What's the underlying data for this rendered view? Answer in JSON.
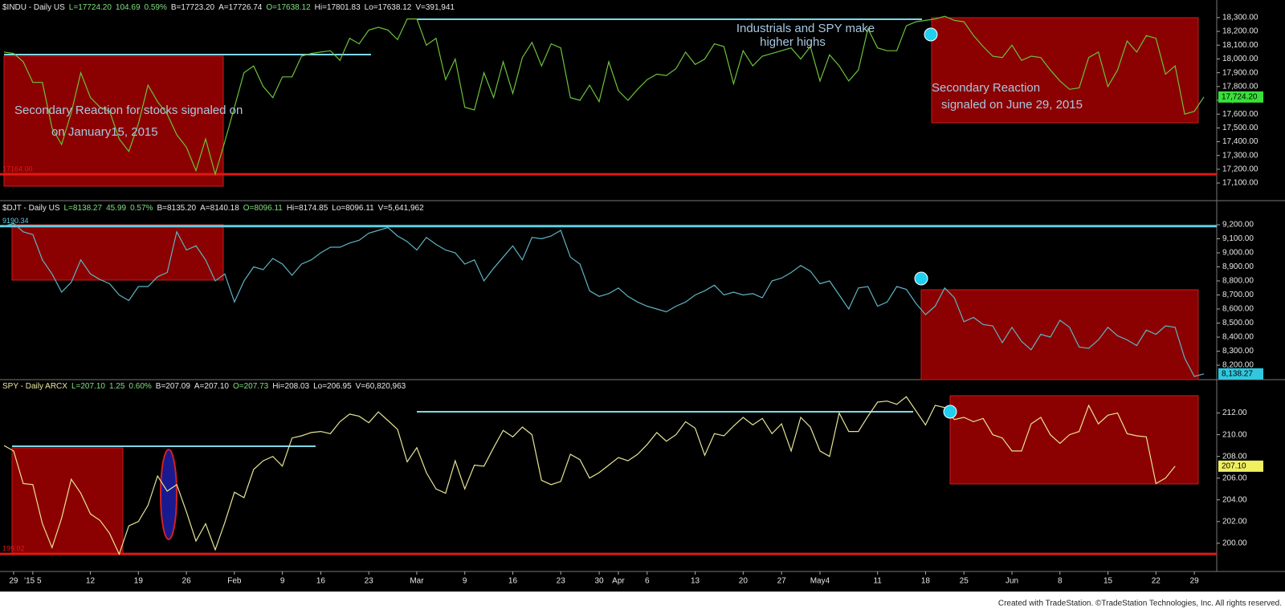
{
  "chart_data": [
    {
      "type": "line",
      "header": [
        {
          "text": "$INDU - Daily  US",
          "color": "#e8e8e8"
        },
        {
          "text": "L=17724.20",
          "color": "#7fe07f"
        },
        {
          "text": "104.69",
          "color": "#7fe07f"
        },
        {
          "text": "0.59%",
          "color": "#7fe07f"
        },
        {
          "text": "B=17723.20",
          "color": "#e8e8e8"
        },
        {
          "text": "A=17726.74",
          "color": "#e8e8e8"
        },
        {
          "text": "O=17638.12",
          "color": "#7fe07f"
        },
        {
          "text": "Hi=17801.83",
          "color": "#e8e8e8"
        },
        {
          "text": "Lo=17638.12",
          "color": "#e8e8e8"
        },
        {
          "text": "V=391,941",
          "color": "#e8e8e8"
        }
      ],
      "color": "#6cc23a",
      "xlim": [
        0,
        126
      ],
      "ylim": [
        16984,
        18416
      ],
      "x": [
        0,
        1,
        2,
        3,
        4,
        5,
        6,
        7,
        8,
        9,
        10,
        11,
        12,
        13,
        14,
        15,
        16,
        17,
        18,
        19,
        20,
        21,
        22,
        23,
        24,
        25,
        26,
        27,
        28,
        29,
        30,
        31,
        32,
        33,
        34,
        35,
        36,
        37,
        38,
        39,
        40,
        41,
        42,
        43,
        44,
        45,
        46,
        47,
        48,
        49,
        50,
        51,
        52,
        53,
        54,
        55,
        56,
        57,
        58,
        59,
        60,
        61,
        62,
        63,
        64,
        65,
        66,
        67,
        68,
        69,
        70,
        71,
        72,
        73,
        74,
        75,
        76,
        77,
        78,
        79,
        80,
        81,
        82,
        83,
        84,
        85,
        86,
        87,
        88,
        89,
        90,
        91,
        92,
        93,
        94,
        95,
        96,
        97,
        98,
        99,
        100,
        101,
        102,
        103,
        104,
        105,
        106,
        107,
        108,
        109,
        110,
        111,
        112,
        113,
        114,
        115,
        116,
        117,
        118,
        119,
        120,
        121,
        122,
        123,
        124,
        125
      ],
      "values": [
        18050,
        18040,
        17980,
        17830,
        17830,
        17500,
        17380,
        17610,
        17900,
        17720,
        17650,
        17620,
        17420,
        17330,
        17530,
        17810,
        17690,
        17600,
        17450,
        17360,
        17190,
        17420,
        17164,
        17400,
        17650,
        17900,
        17950,
        17800,
        17720,
        17870,
        17870,
        18020,
        18040,
        18050,
        18060,
        17990,
        18150,
        18110,
        18210,
        18230,
        18210,
        18140,
        18290,
        18290,
        18100,
        18150,
        17850,
        18000,
        17650,
        17630,
        17900,
        17720,
        17980,
        17750,
        18010,
        18120,
        17950,
        18110,
        18080,
        17720,
        17700,
        17810,
        17690,
        17980,
        17770,
        17700,
        17780,
        17850,
        17890,
        17880,
        17930,
        18050,
        17960,
        18000,
        18110,
        18090,
        17820,
        18060,
        17950,
        18020,
        18040,
        18060,
        18080,
        18000,
        18090,
        17840,
        18030,
        17950,
        17840,
        17920,
        18220,
        18080,
        18060,
        18060,
        18240,
        18270,
        18280,
        18290,
        18310,
        18280,
        18270,
        18170,
        18090,
        18020,
        18010,
        18100,
        17990,
        18020,
        18010,
        17920,
        17840,
        17780,
        17790,
        18010,
        18050,
        17800,
        17920,
        18130,
        18050,
        18170,
        18150,
        17890,
        17950,
        17600,
        17620,
        17724.2
      ],
      "yticks": [
        {
          "value": 17100,
          "label": "17,100.00"
        },
        {
          "value": 17200,
          "label": "17,200.00"
        },
        {
          "value": 17300,
          "label": "17,300.00"
        },
        {
          "value": 17400,
          "label": "17,400.00"
        },
        {
          "value": 17500,
          "label": "17,500.00"
        },
        {
          "value": 17600,
          "label": "17,600.00"
        },
        {
          "value": 17700,
          "label": "17,700.00"
        },
        {
          "value": 17800,
          "label": "17,800.00"
        },
        {
          "value": 17900,
          "label": "17,900.00"
        },
        {
          "value": 18000,
          "label": "18,000.00"
        },
        {
          "value": 18100,
          "label": "18,100.00"
        },
        {
          "value": 18200,
          "label": "18,200.00"
        },
        {
          "value": 18300,
          "label": "18,300.00"
        }
      ],
      "levels": [
        {
          "value": 17164,
          "label": "17164.00",
          "color": "#e01818"
        }
      ],
      "last_label": {
        "value": 17724.2,
        "label": "17,724.20",
        "color": "#39e039"
      },
      "annotations": [
        "Industrials and SPY  make",
        "higher highs",
        "Secondary  Reaction for stocks signaled on",
        "on January15, 2015",
        "Secondary Reaction",
        "signaled on June 29, 2015"
      ]
    },
    {
      "type": "line",
      "header": [
        {
          "text": "$DJT - Daily  US",
          "color": "#e8e8e8"
        },
        {
          "text": "L=8138.27",
          "color": "#7fe07f"
        },
        {
          "text": "45.99",
          "color": "#7fe07f"
        },
        {
          "text": "0.57%",
          "color": "#7fe07f"
        },
        {
          "text": "B=8135.20",
          "color": "#e8e8e8"
        },
        {
          "text": "A=8140.18",
          "color": "#e8e8e8"
        },
        {
          "text": "O=8096.11",
          "color": "#7fe07f"
        },
        {
          "text": "Hi=8174.85",
          "color": "#e8e8e8"
        },
        {
          "text": "Lo=8096.11",
          "color": "#e8e8e8"
        },
        {
          "text": "V=5,641,962",
          "color": "#e8e8e8"
        }
      ],
      "color": "#5db4c4",
      "xlim": [
        0,
        126
      ],
      "ylim": [
        8103,
        9360
      ],
      "x": [
        0,
        1,
        2,
        3,
        4,
        5,
        6,
        7,
        8,
        9,
        10,
        11,
        12,
        13,
        14,
        15,
        16,
        17,
        18,
        19,
        20,
        21,
        22,
        23,
        24,
        25,
        26,
        27,
        28,
        29,
        30,
        31,
        32,
        33,
        34,
        35,
        36,
        37,
        38,
        39,
        40,
        41,
        42,
        43,
        44,
        45,
        46,
        47,
        48,
        49,
        50,
        51,
        52,
        53,
        54,
        55,
        56,
        57,
        58,
        59,
        60,
        61,
        62,
        63,
        64,
        65,
        66,
        67,
        68,
        69,
        70,
        71,
        72,
        73,
        74,
        75,
        76,
        77,
        78,
        79,
        80,
        81,
        82,
        83,
        84,
        85,
        86,
        87,
        88,
        89,
        90,
        91,
        92,
        93,
        94,
        95,
        96,
        97,
        98,
        99,
        100,
        101,
        102,
        103,
        104,
        105,
        106,
        107,
        108,
        109,
        110,
        111,
        112,
        113,
        114,
        115,
        116,
        117,
        118,
        119,
        120,
        121,
        122,
        123,
        124,
        125
      ],
      "values": [
        9190,
        9210,
        9150,
        9130,
        8950,
        8850,
        8720,
        8790,
        8950,
        8850,
        8810,
        8780,
        8700,
        8660,
        8760,
        8760,
        8830,
        8860,
        9150,
        9020,
        9050,
        8950,
        8800,
        8850,
        8650,
        8800,
        8900,
        8880,
        8960,
        8920,
        8840,
        8920,
        8950,
        9000,
        9040,
        9040,
        9070,
        9090,
        9140,
        9160,
        9180,
        9120,
        9080,
        9020,
        9110,
        9060,
        9020,
        9000,
        8920,
        8950,
        8800,
        8890,
        8970,
        9050,
        8950,
        9110,
        9100,
        9120,
        9160,
        8970,
        8920,
        8730,
        8690,
        8710,
        8750,
        8690,
        8650,
        8620,
        8600,
        8580,
        8620,
        8650,
        8700,
        8730,
        8770,
        8700,
        8720,
        8700,
        8710,
        8680,
        8800,
        8820,
        8860,
        8910,
        8870,
        8780,
        8800,
        8700,
        8600,
        8750,
        8760,
        8620,
        8650,
        8760,
        8740,
        8640,
        8560,
        8620,
        8750,
        8680,
        8510,
        8540,
        8490,
        8480,
        8360,
        8470,
        8370,
        8310,
        8420,
        8400,
        8520,
        8470,
        8330,
        8320,
        8380,
        8470,
        8410,
        8380,
        8340,
        8450,
        8420,
        8480,
        8470,
        8250,
        8120,
        8138.27
      ],
      "yticks": [
        {
          "value": 8200,
          "label": "8,200.00"
        },
        {
          "value": 8300,
          "label": "8,300.00"
        },
        {
          "value": 8400,
          "label": "8,400.00"
        },
        {
          "value": 8500,
          "label": "8,500.00"
        },
        {
          "value": 8600,
          "label": "8,600.00"
        },
        {
          "value": 8700,
          "label": "8,700.00"
        },
        {
          "value": 8800,
          "label": "8,800.00"
        },
        {
          "value": 8900,
          "label": "8,900.00"
        },
        {
          "value": 9000,
          "label": "9,000.00"
        },
        {
          "value": 9100,
          "label": "9,100.00"
        },
        {
          "value": 9200,
          "label": "9,200.00"
        }
      ],
      "levels": [
        {
          "value": 9190.34,
          "label": "9190.34",
          "color": "#5fd0e0"
        }
      ],
      "last_label": {
        "value": 8138.27,
        "label": "8,138.27",
        "color": "#30c8e0"
      }
    },
    {
      "type": "line",
      "header": [
        {
          "text": "SPY - Daily  ARCX",
          "color": "#e8e8a0"
        },
        {
          "text": "L=207.10",
          "color": "#7fe07f"
        },
        {
          "text": "1.25",
          "color": "#7fe07f"
        },
        {
          "text": "0.60%",
          "color": "#7fe07f"
        },
        {
          "text": "B=207.09",
          "color": "#e8e8e8"
        },
        {
          "text": "A=207.10",
          "color": "#e8e8e8"
        },
        {
          "text": "O=207.73",
          "color": "#7fe07f"
        },
        {
          "text": "Hi=208.03",
          "color": "#e8e8e8"
        },
        {
          "text": "Lo=206.95",
          "color": "#e8e8e8"
        },
        {
          "text": "V=60,820,963",
          "color": "#e8e8e8"
        }
      ],
      "color": "#e6e496",
      "xlim": [
        0,
        126
      ],
      "ylim": [
        197.4,
        215.0
      ],
      "x": [
        0,
        1,
        2,
        3,
        4,
        5,
        6,
        7,
        8,
        9,
        10,
        11,
        12,
        13,
        14,
        15,
        16,
        17,
        18,
        19,
        20,
        21,
        22,
        23,
        24,
        25,
        26,
        27,
        28,
        29,
        30,
        31,
        32,
        33,
        34,
        35,
        36,
        37,
        38,
        39,
        40,
        41,
        42,
        43,
        44,
        45,
        46,
        47,
        48,
        49,
        50,
        51,
        52,
        53,
        54,
        55,
        56,
        57,
        58,
        59,
        60,
        61,
        62,
        63,
        64,
        65,
        66,
        67,
        68,
        69,
        70,
        71,
        72,
        73,
        74,
        75,
        76,
        77,
        78,
        79,
        80,
        81,
        82,
        83,
        84,
        85,
        86,
        87,
        88,
        89,
        90,
        91,
        92,
        93,
        94,
        95,
        96,
        97,
        98,
        99,
        100,
        101,
        102,
        103,
        104,
        105,
        106,
        107,
        108,
        109,
        110,
        111,
        112,
        113,
        114,
        115,
        116,
        117,
        118,
        119,
        120,
        121,
        122
      ],
      "values": [
        209,
        208.5,
        205.5,
        205.4,
        201.8,
        199.6,
        202.3,
        205.9,
        204.6,
        202.7,
        202.1,
        200.9,
        199.0,
        201.6,
        202.0,
        203.5,
        206.2,
        204.8,
        205.4,
        202.9,
        200.2,
        201.8,
        199.4,
        201.9,
        204.7,
        204.2,
        206.8,
        207.6,
        208.0,
        207.1,
        209.7,
        209.9,
        210.2,
        210.3,
        210.1,
        211.2,
        211.9,
        211.7,
        211.1,
        212.1,
        211.3,
        210.5,
        207.5,
        208.8,
        206.5,
        205.0,
        204.6,
        207.6,
        205.0,
        207.2,
        207.1,
        208.8,
        210.4,
        209.8,
        210.7,
        210.0,
        205.8,
        205.4,
        205.7,
        208.2,
        207.7,
        206.0,
        206.5,
        207.2,
        207.9,
        207.6,
        208.2,
        209.1,
        210.2,
        209.4,
        210.0,
        211.2,
        210.6,
        208.1,
        210.1,
        209.9,
        210.8,
        211.6,
        210.9,
        211.5,
        210.1,
        211.0,
        208.5,
        211.6,
        210.7,
        208.5,
        208.0,
        212.0,
        210.3,
        210.3,
        211.7,
        213.0,
        213.1,
        212.8,
        213.5,
        212.2,
        210.9,
        212.7,
        212.5,
        211.4,
        211.6,
        211.2,
        211.5,
        210.0,
        209.7,
        208.5,
        208.5,
        211.0,
        211.6,
        210.0,
        209.2,
        210.0,
        210.3,
        212.7,
        211.0,
        211.8,
        212.0,
        210.1,
        209.9,
        209.8,
        205.5,
        206.0,
        207.1
      ],
      "yticks": [
        {
          "value": 200,
          "label": "200.00"
        },
        {
          "value": 202,
          "label": "202.00"
        },
        {
          "value": 204,
          "label": "204.00"
        },
        {
          "value": 206,
          "label": "206.00"
        },
        {
          "value": 208,
          "label": "208.00"
        },
        {
          "value": 210,
          "label": "210.00"
        },
        {
          "value": 212,
          "label": "212.00"
        }
      ],
      "levels": [
        {
          "value": 199.02,
          "label": "199.02",
          "color": "#e01818"
        }
      ],
      "last_label": {
        "value": 207.1,
        "label": "207.10",
        "color": "#f0f060"
      },
      "xticks": [
        {
          "value": 1,
          "label": "29"
        },
        {
          "value": 3,
          "label": "'15 5"
        },
        {
          "value": 9,
          "label": "12"
        },
        {
          "value": 14,
          "label": "19"
        },
        {
          "value": 19,
          "label": "26"
        },
        {
          "value": 24,
          "label": "Feb"
        },
        {
          "value": 29,
          "label": "9"
        },
        {
          "value": 33,
          "label": "16"
        },
        {
          "value": 38,
          "label": "23"
        },
        {
          "value": 43,
          "label": "Mar"
        },
        {
          "value": 48,
          "label": "9"
        },
        {
          "value": 53,
          "label": "16"
        },
        {
          "value": 58,
          "label": "23"
        },
        {
          "value": 62,
          "label": "30"
        },
        {
          "value": 64,
          "label": "Apr"
        },
        {
          "value": 67,
          "label": "6"
        },
        {
          "value": 72,
          "label": "13"
        },
        {
          "value": 77,
          "label": "20"
        },
        {
          "value": 81,
          "label": "27"
        },
        {
          "value": 85,
          "label": "May4"
        },
        {
          "value": 91,
          "label": "11"
        },
        {
          "value": 96,
          "label": "18"
        },
        {
          "value": 100,
          "label": "25"
        },
        {
          "value": 105,
          "label": "Jun"
        },
        {
          "value": 110,
          "label": "8"
        },
        {
          "value": 115,
          "label": "15"
        },
        {
          "value": 120,
          "label": "22"
        },
        {
          "value": 124,
          "label": "29"
        }
      ]
    }
  ],
  "footer": "Created with TradeStation. ©TradeStation Technologies, Inc. All rights reserved."
}
